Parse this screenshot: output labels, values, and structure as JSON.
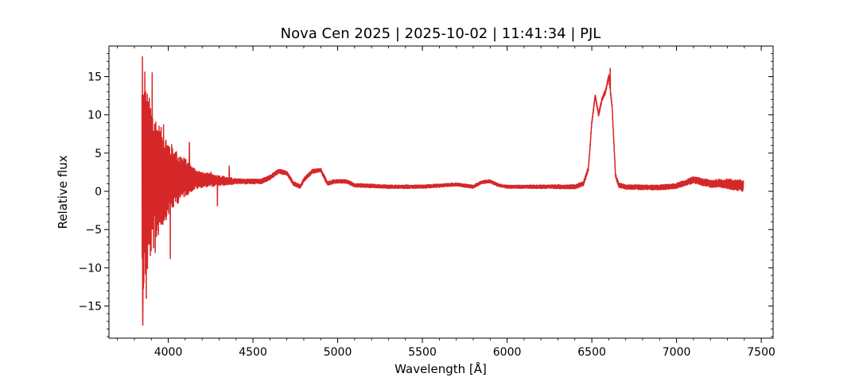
{
  "chart_data": {
    "type": "line",
    "title": "Nova Cen 2025 | 2025-10-02 | 11:41:34 | PJL",
    "xlabel": "Wavelength [Å]",
    "ylabel": "Relative flux",
    "xlim": [
      3650,
      7570
    ],
    "ylim": [
      -19.2,
      19.0
    ],
    "x_ticks": [
      4000,
      4500,
      5000,
      5500,
      6000,
      6500,
      7000,
      7500
    ],
    "x_tick_labels": [
      "4000",
      "4500",
      "5000",
      "5500",
      "6000",
      "6500",
      "7000",
      "7500"
    ],
    "y_ticks": [
      -15,
      -10,
      -5,
      0,
      5,
      10,
      15
    ],
    "y_tick_labels": [
      "−15",
      "−10",
      "−5",
      "0",
      "5",
      "10",
      "15"
    ],
    "grid": false,
    "legend": "none",
    "line_color": "#d62728",
    "series": [
      {
        "x_range": [
          3845,
          7395
        ],
        "continuum_points": [
          [
            3845,
            0.5
          ],
          [
            3900,
            1.5
          ],
          [
            4000,
            1.8
          ],
          [
            4100,
            1.8
          ],
          [
            4200,
            1.5
          ],
          [
            4300,
            1.4
          ],
          [
            4400,
            1.3
          ],
          [
            4500,
            1.3
          ],
          [
            4550,
            1.3
          ],
          [
            4600,
            1.8
          ],
          [
            4650,
            2.6
          ],
          [
            4700,
            2.4
          ],
          [
            4740,
            1.0
          ],
          [
            4780,
            0.6
          ],
          [
            4800,
            1.5
          ],
          [
            4850,
            2.6
          ],
          [
            4900,
            2.8
          ],
          [
            4940,
            1.0
          ],
          [
            4980,
            1.3
          ],
          [
            5050,
            1.3
          ],
          [
            5100,
            0.8
          ],
          [
            5300,
            0.6
          ],
          [
            5500,
            0.6
          ],
          [
            5700,
            0.9
          ],
          [
            5800,
            0.6
          ],
          [
            5850,
            1.2
          ],
          [
            5900,
            1.3
          ],
          [
            5950,
            0.8
          ],
          [
            6000,
            0.6
          ],
          [
            6200,
            0.6
          ],
          [
            6400,
            0.6
          ],
          [
            6450,
            1.0
          ],
          [
            6480,
            3.0
          ],
          [
            6500,
            9.0
          ],
          [
            6520,
            12.5
          ],
          [
            6540,
            10.0
          ],
          [
            6560,
            12.0
          ],
          [
            6580,
            13.0
          ],
          [
            6600,
            15.0
          ],
          [
            6620,
            11.0
          ],
          [
            6640,
            2.0
          ],
          [
            6660,
            0.8
          ],
          [
            6700,
            0.6
          ],
          [
            6800,
            0.5
          ],
          [
            6900,
            0.5
          ],
          [
            7000,
            0.7
          ],
          [
            7100,
            1.5
          ],
          [
            7200,
            1.0
          ],
          [
            7300,
            1.0
          ],
          [
            7395,
            0.7
          ]
        ],
        "noise_amplitude_points": [
          [
            3845,
            15.0
          ],
          [
            3900,
            10.0
          ],
          [
            3950,
            7.0
          ],
          [
            4000,
            5.0
          ],
          [
            4050,
            3.5
          ],
          [
            4100,
            2.5
          ],
          [
            4150,
            1.5
          ],
          [
            4200,
            1.0
          ],
          [
            4300,
            0.7
          ],
          [
            4400,
            0.35
          ],
          [
            4600,
            0.3
          ],
          [
            5000,
            0.25
          ],
          [
            6000,
            0.2
          ],
          [
            6500,
            0.3
          ],
          [
            6700,
            0.3
          ],
          [
            7000,
            0.35
          ],
          [
            7200,
            0.5
          ],
          [
            7395,
            0.8
          ]
        ],
        "extremes": [
          [
            3847,
            17.6
          ],
          [
            3850,
            -17.5
          ],
          [
            3862,
            15.6
          ],
          [
            3870,
            -14.0
          ],
          [
            3905,
            15.5
          ],
          [
            3923,
            -8.0
          ],
          [
            3972,
            8.7
          ],
          [
            4012,
            -8.8
          ],
          [
            4065,
            -0.2
          ],
          [
            4125,
            6.4
          ],
          [
            4252,
            2.5
          ],
          [
            4290,
            -1.9
          ],
          [
            4360,
            3.3
          ],
          [
            6608,
            16.1
          ]
        ]
      }
    ]
  }
}
